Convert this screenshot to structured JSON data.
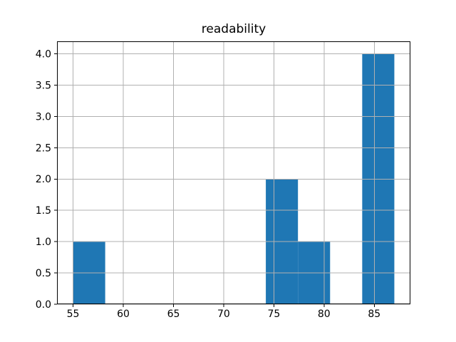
{
  "figure": {
    "title": "readability"
  },
  "chart_data": {
    "type": "bar",
    "subtype": "histogram",
    "title": "readability",
    "xlabel": "",
    "ylabel": "",
    "bin_edges": [
      55.0,
      58.2,
      61.4,
      64.6,
      67.8,
      71.0,
      74.2,
      77.4,
      80.6,
      83.8,
      87.0
    ],
    "counts": [
      1,
      0,
      0,
      0,
      0,
      0,
      2,
      1,
      0,
      4
    ],
    "xlim": [
      53.4,
      88.6
    ],
    "ylim": [
      0,
      4.2
    ],
    "xticks": [
      55,
      60,
      65,
      70,
      75,
      80,
      85
    ],
    "xtick_labels": [
      "55",
      "60",
      "65",
      "70",
      "75",
      "80",
      "85"
    ],
    "yticks": [
      0.0,
      0.5,
      1.0,
      1.5,
      2.0,
      2.5,
      3.0,
      3.5,
      4.0
    ],
    "ytick_labels": [
      "0.0",
      "0.5",
      "1.0",
      "1.5",
      "2.0",
      "2.5",
      "3.0",
      "3.5",
      "4.0"
    ],
    "grid": true,
    "grid_over_bars": true,
    "legend": "none",
    "colors": {
      "bar": "#1f77b4",
      "grid": "#b0b0b0",
      "spine": "#000000",
      "tick": "#000000",
      "background": "#ffffff"
    }
  }
}
